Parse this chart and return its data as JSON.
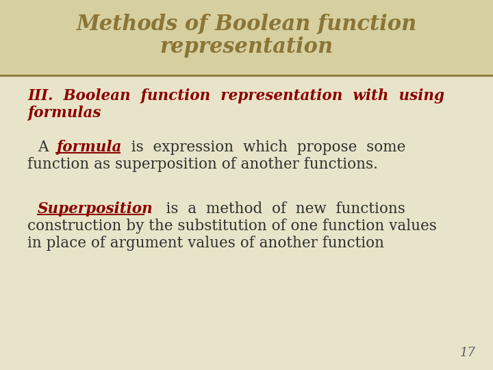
{
  "bg_color": "#e8e4c9",
  "header_bg": "#d6cfa0",
  "title_text_line1": "Methods of Boolean function",
  "title_text_line2": "representation",
  "title_color": "#8b7536",
  "separator_color": "#8b7536",
  "subtitle_color": "#8b0000",
  "body_color": "#2f2f2f",
  "keyword1_color": "#8b0000",
  "keyword2_color": "#8b0000",
  "page_number": "17",
  "page_color": "#5a5a5a"
}
